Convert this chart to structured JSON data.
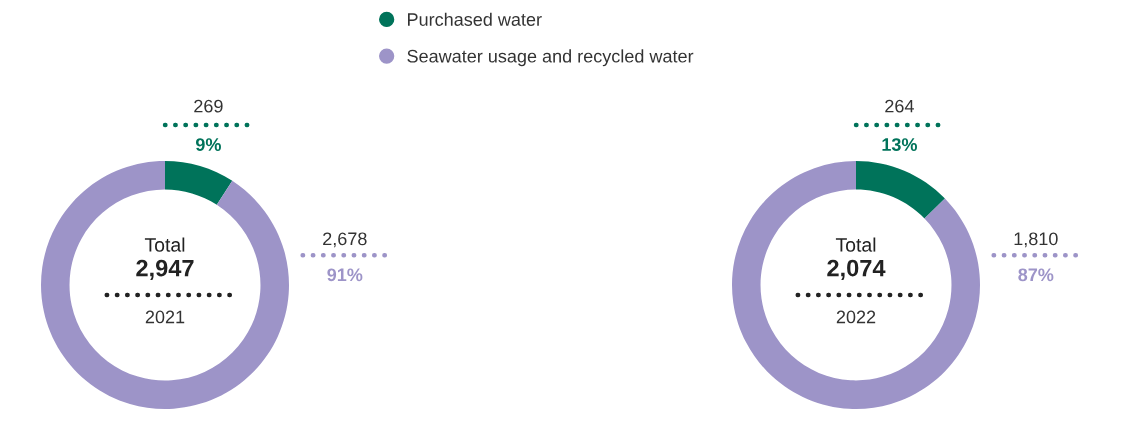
{
  "chart_data": [
    {
      "type": "donut",
      "title": "2021",
      "categories": [
        "Purchased water",
        "Seawater usage and recycled water"
      ],
      "values": [
        269,
        2678
      ],
      "colors": [
        "#00735a",
        "#9d94c8"
      ],
      "value_labels": [
        "269\n9%",
        "2,678\n91%"
      ],
      "annotations": [
        "Total",
        "2,947"
      ],
      "legend": "top"
    },
    {
      "type": "donut",
      "title": "2022",
      "categories": [
        null,
        null
      ],
      "values": [
        264,
        1810
      ],
      "colors": [
        "#00735a",
        "#9d94c8"
      ],
      "value_labels": [
        "264\n13%",
        "1,810\n87%"
      ],
      "annotations": [
        "Total",
        "2,074"
      ]
    }
  ]
}
